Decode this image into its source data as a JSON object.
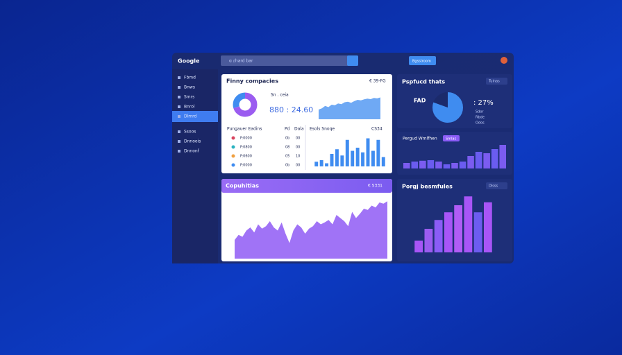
{
  "header": {
    "logo": "Google",
    "search": "ɑ ɾhard bar",
    "button": "Bgsstroom"
  },
  "sidebar": {
    "items": [
      "Fbmd",
      "Bnws",
      "Smrs",
      "Bnrol",
      "Dlmrd",
      "Ssoos",
      "Dnnoois",
      "Dnnonf"
    ],
    "active": 4
  },
  "panel1": {
    "title": "Finny compacies",
    "badge": "€ 39-FG",
    "donut": {
      "values": [
        70,
        30
      ],
      "colors": [
        "#9b5cf0",
        "#3f8cf0"
      ]
    },
    "kpi_label": "Sn . ceia",
    "kpi": "880 : 24.60",
    "area": {
      "color": "#3f8cf0",
      "ylim": [
        0,
        100
      ],
      "values": [
        40,
        45,
        55,
        50,
        60,
        58,
        65,
        62,
        70,
        72,
        68,
        75,
        80,
        78,
        82,
        85,
        83,
        88,
        86,
        90
      ]
    },
    "list": {
      "title": "Pungauer Eadins",
      "cols": [
        "Pd",
        "Dala"
      ],
      "rows": [
        {
          "color": "#d9455f",
          "text": "F:0000",
          "a": "0b",
          "b": "00"
        },
        {
          "color": "#2bb3c0",
          "text": "F:0800",
          "a": "08",
          "b": "00"
        },
        {
          "color": "#f0a040",
          "text": "F:0600",
          "a": "05",
          "b": "10"
        },
        {
          "color": "#3f8cf0",
          "text": "F:0000",
          "a": "0b",
          "b": "00"
        }
      ]
    },
    "bars": {
      "title": "Esols Snoqe",
      "badge": "CS34",
      "color": "#3f8cf0",
      "ylim": [
        0,
        100
      ],
      "values": [
        15,
        20,
        10,
        40,
        55,
        35,
        85,
        50,
        60,
        45,
        90,
        50,
        85,
        30
      ]
    }
  },
  "panel2": {
    "title": "Copuhitias",
    "badge": "€ 5331",
    "area": {
      "color": "#9b6cf5",
      "ylim": [
        0,
        100
      ],
      "values": [
        30,
        38,
        35,
        45,
        50,
        42,
        55,
        48,
        52,
        60,
        50,
        45,
        58,
        40,
        25,
        45,
        55,
        50,
        40,
        48,
        52,
        60,
        55,
        58,
        62,
        55,
        70,
        65,
        60,
        52,
        75,
        65,
        72,
        80,
        78,
        85,
        82,
        90,
        88,
        92
      ]
    }
  },
  "panel3": {
    "title": "Pspfucd thats",
    "button": "Tulnas",
    "pie_label": "FAD",
    "pct": ": 27%",
    "pie": {
      "values": [
        80,
        20
      ],
      "colors": [
        "#3f8cf0",
        "#1b2a6b"
      ]
    },
    "items": [
      "Sdor",
      "Rbde",
      "Odos"
    ]
  },
  "panel4": {
    "title": "Pergud Wmlfhen",
    "pill": "Smlas",
    "ylim": [
      0,
      100
    ],
    "values": [
      20,
      25,
      28,
      30,
      25,
      15,
      20,
      25,
      45,
      60,
      55,
      70,
      85
    ],
    "colors": [
      "#7b5cf0",
      "#6a5cf0",
      "#7b5cf0",
      "#6a5cf0",
      "#7b5cf0",
      "#6a5cf0",
      "#7b5cf0",
      "#6a5cf0",
      "#7b5cf0",
      "#6a5cf0",
      "#7b5cf0",
      "#6a5cf0",
      "#7b5cf0"
    ]
  },
  "panel5": {
    "title": "Porgj besmfules",
    "button": "Dlsss",
    "ylim": [
      0,
      100
    ],
    "values": [
      20,
      40,
      55,
      68,
      80,
      95,
      68,
      85
    ],
    "colors": [
      "#a855f7",
      "#9b5cf0",
      "#8b5cf6",
      "#a855f7",
      "#b15cf6",
      "#a855f7",
      "#6d5cf0",
      "#a855f7"
    ]
  }
}
